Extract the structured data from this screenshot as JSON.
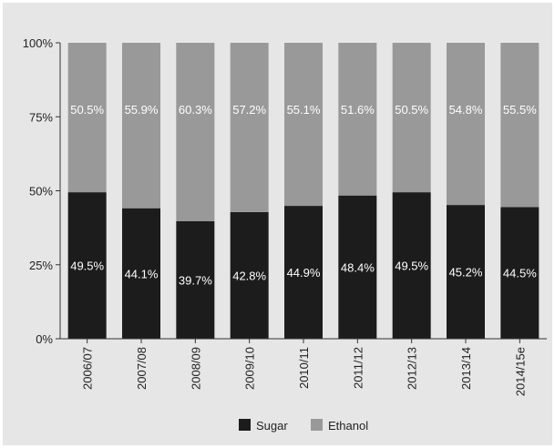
{
  "chart_data": {
    "type": "bar",
    "stacked": true,
    "percent": true,
    "categories": [
      "2006/07",
      "2007/08",
      "2008/09",
      "2009/10",
      "2010/11",
      "2011/12",
      "2012/13",
      "2013/14",
      "2014/15e"
    ],
    "series": [
      {
        "name": "Sugar",
        "color": "#1c1c1c",
        "values": [
          49.5,
          44.1,
          39.7,
          42.8,
          44.9,
          48.4,
          49.5,
          45.2,
          44.5
        ],
        "labels": [
          "49.5%",
          "44.1%",
          "39.7%",
          "42.8%",
          "44.9%",
          "48.4%",
          "49.5%",
          "45.2%",
          "44.5%"
        ]
      },
      {
        "name": "Ethanol",
        "color": "#999999",
        "values": [
          50.5,
          55.9,
          60.3,
          57.2,
          55.1,
          51.6,
          50.5,
          54.8,
          55.5
        ],
        "labels": [
          "50.5%",
          "55.9%",
          "60.3%",
          "57.2%",
          "55.1%",
          "51.6%",
          "50.5%",
          "54.8%",
          "55.5%"
        ]
      }
    ],
    "ylim": [
      0,
      100
    ],
    "yticks": [
      "0%",
      "25%",
      "50%",
      "75%",
      "100%"
    ],
    "grid": false,
    "legend": "bottom",
    "background": "#e6e6e6"
  }
}
